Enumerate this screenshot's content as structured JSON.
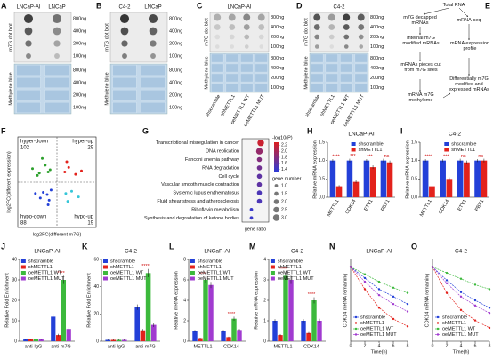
{
  "panels": {
    "A": {
      "label": "A",
      "columns": [
        "LNCaP-AI",
        "LNCaP"
      ],
      "rows": [
        "800ng",
        "400ng",
        "200ng",
        "100ng"
      ],
      "top_label": "m7G dot blot",
      "bottom_label": "Methylene blue"
    },
    "B": {
      "label": "B",
      "columns": [
        "C4-2",
        "LNCaP"
      ],
      "rows": [
        "800ng",
        "400ng",
        "200ng",
        "100ng"
      ],
      "top_label": "m7G dot blot",
      "bottom_label": "Methylene blue"
    },
    "C": {
      "label": "C",
      "header": "LNCaP-AI",
      "columns": [
        "shscramble",
        "shMETTL1",
        "oeMETTL1 WT",
        "oeMETTL1 MUT"
      ],
      "rows": [
        "800ng",
        "400ng",
        "200ng",
        "100ng"
      ],
      "top_label": "m7G dot blot",
      "bottom_label": "Methylene blue"
    },
    "D": {
      "label": "D",
      "header": "C4-2",
      "columns": [
        "shscramble",
        "shMETTL1",
        "oeMETTL1 WT",
        "oeMETTL1 MUT"
      ],
      "rows": [
        "800ng",
        "400ng",
        "200ng",
        "100ng"
      ],
      "top_label": "m7G dot blot",
      "bottom_label": "Methylene blue"
    },
    "E": {
      "label": "E",
      "nodes": [
        "Total RNA",
        "m7G decapped mRNAs",
        "mRNA-seq",
        "Internal m7G modified mRNAs",
        "mRNA expression profile",
        "mRNAs pieces cut from m7G sites",
        "mRNA m7G methylome",
        "Differentially m7G modified and expressed mRNAs"
      ]
    }
  },
  "chart_data": [
    {
      "type": "scatter",
      "label": "F",
      "x_label": "log2FC(different m7G)",
      "y_label": "log2FC(different expression)",
      "xlim": [
        -4,
        4
      ],
      "ylim": [
        -4,
        4
      ],
      "series": [
        {
          "name": "hyper-down",
          "count": 102,
          "color": "#2ca02c",
          "x": [
            -2.5,
            -1.8,
            -1.2,
            -0.9,
            -1.5,
            -0.7,
            -2.0
          ],
          "y": [
            1.2,
            0.8,
            1.5,
            0.9,
            2.1,
            1.1,
            0.6
          ]
        },
        {
          "name": "hyper-up",
          "count": 29,
          "color": "#e3221c",
          "x": [
            0.8,
            1.2,
            1.9,
            1.0,
            2.5
          ],
          "y": [
            0.9,
            1.3,
            0.7,
            1.8,
            1.0
          ]
        },
        {
          "name": "hypo-down",
          "count": 88,
          "color": "#2340d8",
          "x": [
            -0.6,
            -1.0,
            -1.4,
            -0.8,
            -2.2,
            -0.9,
            -1.7
          ],
          "y": [
            -0.7,
            -1.1,
            -0.9,
            -1.6,
            -1.0,
            -2.0,
            -1.4
          ]
        },
        {
          "name": "hypo-up",
          "count": 19,
          "color": "#35c6d8",
          "x": [
            0.9,
            1.5,
            1.1,
            2.2
          ],
          "y": [
            -1.0,
            -0.8,
            -1.7,
            -1.3
          ]
        }
      ]
    },
    {
      "type": "dot",
      "label": "G",
      "categories": [
        "Transcriptional misregulation in cancer",
        "DNA replication",
        "Fanconi anemia pathway",
        "RNA degradation",
        "Cell cycle",
        "Vascular smooth muscle contraction",
        "Systemic lupus erythematosus",
        "Fluid shear stress and atherosclerosis",
        "Riboflavin metabolism",
        "Synthesis and degradation of ketone bodies"
      ],
      "x": [
        0.14,
        0.13,
        0.13,
        0.13,
        0.13,
        0.13,
        0.13,
        0.13,
        0.07,
        0.07
      ],
      "color_values": [
        2.2,
        1.9,
        1.8,
        1.7,
        1.6,
        1.6,
        1.5,
        1.5,
        1.4,
        1.4
      ],
      "sizes": [
        3,
        3,
        2,
        2,
        2,
        2,
        2,
        2,
        1,
        1
      ],
      "xlim": [
        0,
        0.2
      ],
      "x_label": "gene ratio",
      "color_title": "-log10(P)",
      "colorlim": [
        1.3,
        2.3
      ],
      "color_ticks": [
        2.2,
        {
          "value": 2,
          "label": "2.0"
        },
        1.8,
        1.6,
        1.4
      ],
      "size_title": "gene number",
      "size_ticks": [
        {
          "value": 1,
          "label": "1.0"
        },
        1.5,
        {
          "value": 2,
          "label": "2.0"
        },
        2.5,
        {
          "value": 3,
          "label": "3.0"
        }
      ]
    },
    {
      "type": "bar",
      "label": "H",
      "title": "LNCaP-AI",
      "y_label": "Relative mRNA expression",
      "categories": [
        "METTL1",
        "CDK14",
        "ETV1",
        "PBX1"
      ],
      "series": [
        {
          "name": "shscramble",
          "color": "#2340d8",
          "values": [
            1,
            1,
            1,
            1
          ],
          "errors": [
            0.04,
            0.05,
            0.04,
            0.05
          ]
        },
        {
          "name": "shMETTL1",
          "color": "#e3221c",
          "values": [
            0.3,
            0.42,
            0.82,
            0.95
          ],
          "errors": [
            0.03,
            0.04,
            0.05,
            0.05
          ]
        }
      ],
      "annotations": [
        "****",
        "***",
        "***",
        "ns"
      ],
      "ylim": [
        0,
        1.5
      ],
      "yticks": [
        {
          "value": 0,
          "label": "0.0"
        },
        0.5,
        {
          "value": 1,
          "label": "1.0"
        },
        1.5
      ]
    },
    {
      "type": "bar",
      "label": "I",
      "title": "C4-2",
      "y_label": "Relative mRNA expression",
      "categories": [
        "METTL1",
        "CDK14",
        "ETV1",
        "PBX1"
      ],
      "series": [
        {
          "name": "shscramble",
          "color": "#2340d8",
          "values": [
            1,
            1,
            1,
            1
          ],
          "errors": [
            0.04,
            0.04,
            0.05,
            0.04
          ]
        },
        {
          "name": "shMETTL1",
          "color": "#e3221c",
          "values": [
            0.3,
            0.5,
            0.95,
            1.0
          ],
          "errors": [
            0.03,
            0.04,
            0.05,
            0.05
          ]
        }
      ],
      "annotations": [
        "****",
        "***",
        "ns",
        "ns"
      ],
      "ylim": [
        0,
        1.5
      ],
      "yticks": [
        {
          "value": 0,
          "label": "0.0"
        },
        0.5,
        {
          "value": 1,
          "label": "1.0"
        },
        1.5
      ]
    },
    {
      "type": "bar",
      "label": "J",
      "title": "LNCaP-AI",
      "y_label": "Relative Fold Enrichment",
      "categories": [
        "anti-IgG",
        "anti-m7G"
      ],
      "series": [
        {
          "name": "shscramble",
          "color": "#2340d8",
          "values": [
            1,
            12
          ],
          "errors": [
            0.3,
            1.5
          ]
        },
        {
          "name": "shMETTL1",
          "color": "#e3221c",
          "values": [
            1,
            3
          ],
          "errors": [
            0.3,
            0.6
          ]
        },
        {
          "name": "oeMETTL1 WT",
          "color": "#3cb93c",
          "values": [
            1,
            30
          ],
          "errors": [
            0.3,
            2
          ]
        },
        {
          "name": "oeMETTL1 MUT",
          "color": "#a13bd0",
          "values": [
            1,
            6
          ],
          "errors": [
            0.3,
            0.8
          ]
        }
      ],
      "annotations": [
        null,
        "****"
      ],
      "ylim": [
        0,
        40
      ],
      "yticks": [
        0,
        10,
        20,
        30,
        40
      ]
    },
    {
      "type": "bar",
      "label": "K",
      "title": "C4-2",
      "y_label": "Relative Fold Enrichment",
      "categories": [
        "anti-IgG",
        "anti-m7G"
      ],
      "series": [
        {
          "name": "shscramble",
          "color": "#2340d8",
          "values": [
            1,
            25
          ],
          "errors": [
            0.4,
            2
          ]
        },
        {
          "name": "shMETTL1",
          "color": "#e3221c",
          "values": [
            1,
            8
          ],
          "errors": [
            0.4,
            1
          ]
        },
        {
          "name": "oeMETTL1 WT",
          "color": "#3cb93c",
          "values": [
            1,
            50
          ],
          "errors": [
            0.4,
            3
          ]
        },
        {
          "name": "oeMETTL1 MUT",
          "color": "#a13bd0",
          "values": [
            1,
            12
          ],
          "errors": [
            0.4,
            1.5
          ]
        }
      ],
      "annotations": [
        null,
        "****"
      ],
      "ylim": [
        0,
        60
      ],
      "yticks": [
        0,
        20,
        40,
        60
      ]
    },
    {
      "type": "bar",
      "label": "L",
      "title": "LNCaP-AI",
      "y_label": "Relative mRNA expression",
      "categories": [
        "METTL1",
        "CDK14"
      ],
      "series": [
        {
          "name": "shscramble",
          "color": "#2340d8",
          "values": [
            1,
            1
          ],
          "errors": [
            0.1,
            0.1
          ]
        },
        {
          "name": "shMETTL1",
          "color": "#e3221c",
          "values": [
            0.3,
            0.4
          ],
          "errors": [
            0.05,
            0.05
          ]
        },
        {
          "name": "oeMETTL1 WT",
          "color": "#3cb93c",
          "values": [
            6,
            2.2
          ],
          "errors": [
            0.3,
            0.2
          ]
        },
        {
          "name": "oeMETTL1 MUT",
          "color": "#a13bd0",
          "values": [
            5.5,
            1.1
          ],
          "errors": [
            0.3,
            0.1
          ]
        }
      ],
      "annotations": [
        "****",
        "****"
      ],
      "ylim": [
        0,
        8
      ],
      "yticks": [
        0,
        2,
        4,
        6,
        8
      ]
    },
    {
      "type": "bar",
      "label": "M",
      "title": "C4-2",
      "y_label": "Relative mRNA expression",
      "categories": [
        "METTL1",
        "CDK14"
      ],
      "series": [
        {
          "name": "shscramble",
          "color": "#2340d8",
          "values": [
            1,
            1
          ],
          "errors": [
            0.08,
            0.08
          ]
        },
        {
          "name": "shMETTL1",
          "color": "#e3221c",
          "values": [
            0.3,
            0.4
          ],
          "errors": [
            0.05,
            0.05
          ]
        },
        {
          "name": "oeMETTL1 WT",
          "color": "#3cb93c",
          "values": [
            3.2,
            2
          ],
          "errors": [
            0.2,
            0.15
          ]
        },
        {
          "name": "oeMETTL1 MUT",
          "color": "#a13bd0",
          "values": [
            3,
            1
          ],
          "errors": [
            0.2,
            0.1
          ]
        }
      ],
      "annotations": [
        "****",
        "****"
      ],
      "ylim": [
        0,
        4
      ],
      "yticks": [
        0,
        1,
        2,
        3,
        4
      ]
    },
    {
      "type": "line",
      "label": "N",
      "title": "LNCaP-AI",
      "x_label": "Time(h)",
      "y_label": "CDK14 mRNA remaining",
      "x": [
        0,
        2,
        4,
        6,
        8
      ],
      "xlim": [
        0,
        8
      ],
      "xticks": [
        0,
        2,
        4,
        6,
        8
      ],
      "ylim": [
        0,
        1.1
      ],
      "series": [
        {
          "name": "shscramble",
          "color": "#2340d8",
          "values": [
            1,
            0.85,
            0.7,
            0.6,
            0.5
          ]
        },
        {
          "name": "shMETTL1",
          "color": "#e3221c",
          "values": [
            1,
            0.7,
            0.45,
            0.3,
            0.2
          ]
        },
        {
          "name": "oeMETTL1 WT",
          "color": "#3cb93c",
          "values": [
            1,
            0.9,
            0.8,
            0.72,
            0.65
          ]
        },
        {
          "name": "oeMETTL1 MUT",
          "color": "#a13bd0",
          "values": [
            1,
            0.8,
            0.62,
            0.5,
            0.4
          ]
        }
      ]
    },
    {
      "type": "line",
      "label": "O",
      "title": "C4-2",
      "x_label": "Time(h)",
      "y_label": "CDK14 mRNA remaining",
      "x": [
        0,
        2,
        4,
        6,
        8
      ],
      "xlim": [
        0,
        8
      ],
      "xticks": [
        0,
        2,
        4,
        6,
        8
      ],
      "ylim": [
        0,
        1.1
      ],
      "series": [
        {
          "name": "shscramble",
          "color": "#2340d8",
          "values": [
            1,
            0.82,
            0.66,
            0.55,
            0.45
          ]
        },
        {
          "name": "shMETTL1",
          "color": "#e3221c",
          "values": [
            1,
            0.65,
            0.42,
            0.28,
            0.18
          ]
        },
        {
          "name": "oeMETTL1 WT",
          "color": "#3cb93c",
          "values": [
            1,
            0.92,
            0.84,
            0.76,
            0.7
          ]
        },
        {
          "name": "oeMETTL1 MUT",
          "color": "#a13bd0",
          "values": [
            1,
            0.78,
            0.6,
            0.48,
            0.38
          ]
        }
      ]
    }
  ]
}
